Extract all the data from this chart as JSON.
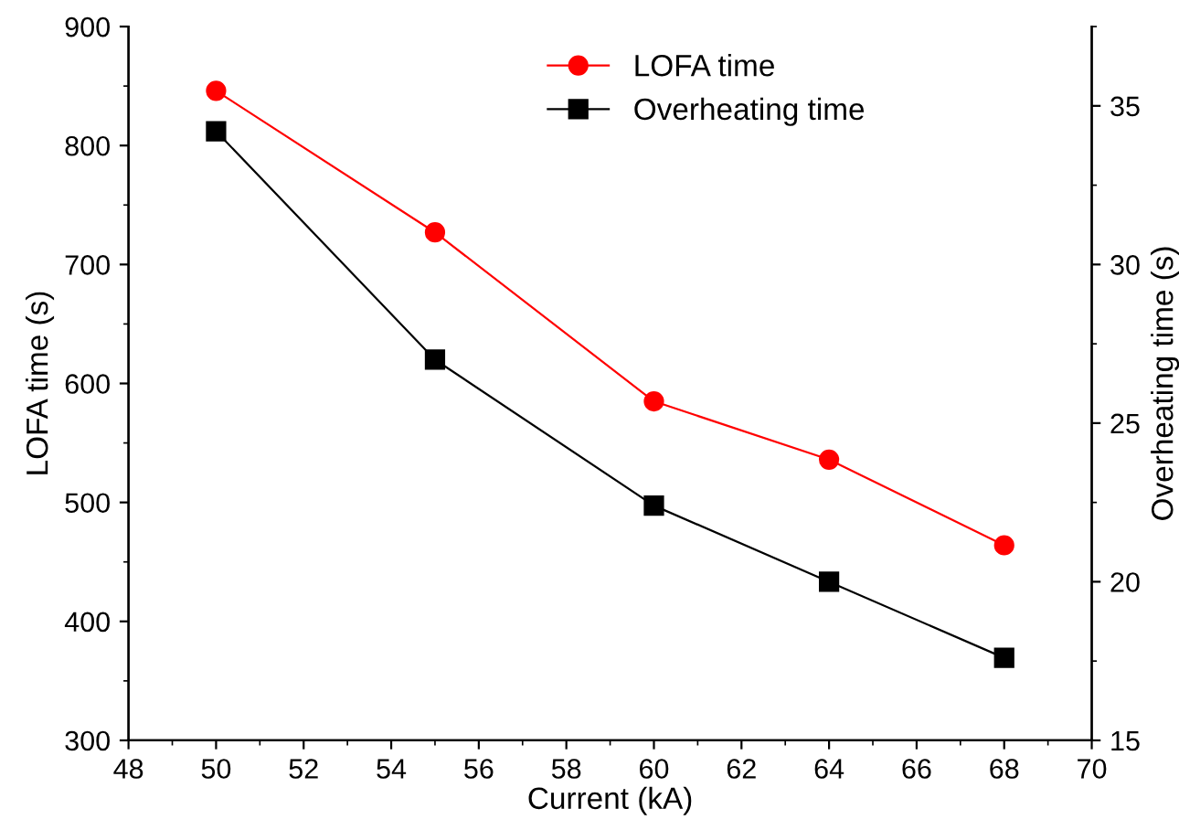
{
  "chart_data": {
    "type": "line",
    "xlabel": "Current (kA)",
    "ylabel": "LOFA time (s)",
    "y2label": "Overheating time (s)",
    "x": [
      50,
      55,
      60,
      64,
      68
    ],
    "series": [
      {
        "name": "LOFA time",
        "color": "#ff0000",
        "marker": "circle",
        "values": [
          846,
          727,
          585,
          536,
          464
        ]
      },
      {
        "name": "Overheating time",
        "color": "#000000",
        "marker": "square",
        "axis": "y2",
        "values": [
          34.2,
          27.0,
          22.4,
          20.0,
          17.6
        ]
      }
    ],
    "xlim": [
      48,
      70
    ],
    "xticks": [
      48,
      50,
      52,
      54,
      56,
      58,
      60,
      62,
      64,
      66,
      68,
      70
    ],
    "ylim": [
      300,
      900
    ],
    "yticks": [
      300,
      400,
      500,
      600,
      700,
      800,
      900
    ],
    "y2lim": [
      15,
      37.5
    ],
    "y2ticks": [
      15,
      20,
      25,
      30,
      35
    ],
    "legend": "top",
    "grid": false,
    "line_style": "solid"
  }
}
